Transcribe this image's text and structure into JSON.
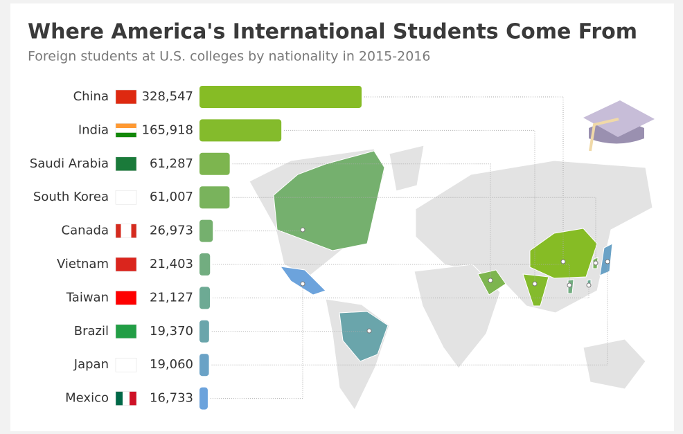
{
  "chart_data": {
    "type": "bar",
    "title": "Where America's International Students Come From",
    "subtitle": "Foreign students at U.S. colleges by nationality in 2015-2016",
    "categories": [
      "China",
      "India",
      "Saudi Arabia",
      "South Korea",
      "Canada",
      "Vietnam",
      "Taiwan",
      "Brazil",
      "Japan",
      "Mexico"
    ],
    "values": [
      328547,
      165918,
      61287,
      61007,
      26973,
      21403,
      21127,
      19370,
      19060,
      16733
    ],
    "value_labels": [
      "328,547",
      "165,918",
      "61,287",
      "61,007",
      "26,973",
      "21,403",
      "21,127",
      "19,370",
      "19,060",
      "16,733"
    ],
    "colors": [
      "#86bc25",
      "#84bb2c",
      "#7db54f",
      "#79b35c",
      "#75b06e",
      "#72ad80",
      "#6daa94",
      "#6aa5ab",
      "#6aa2c6",
      "#6ca3dc"
    ]
  }
}
